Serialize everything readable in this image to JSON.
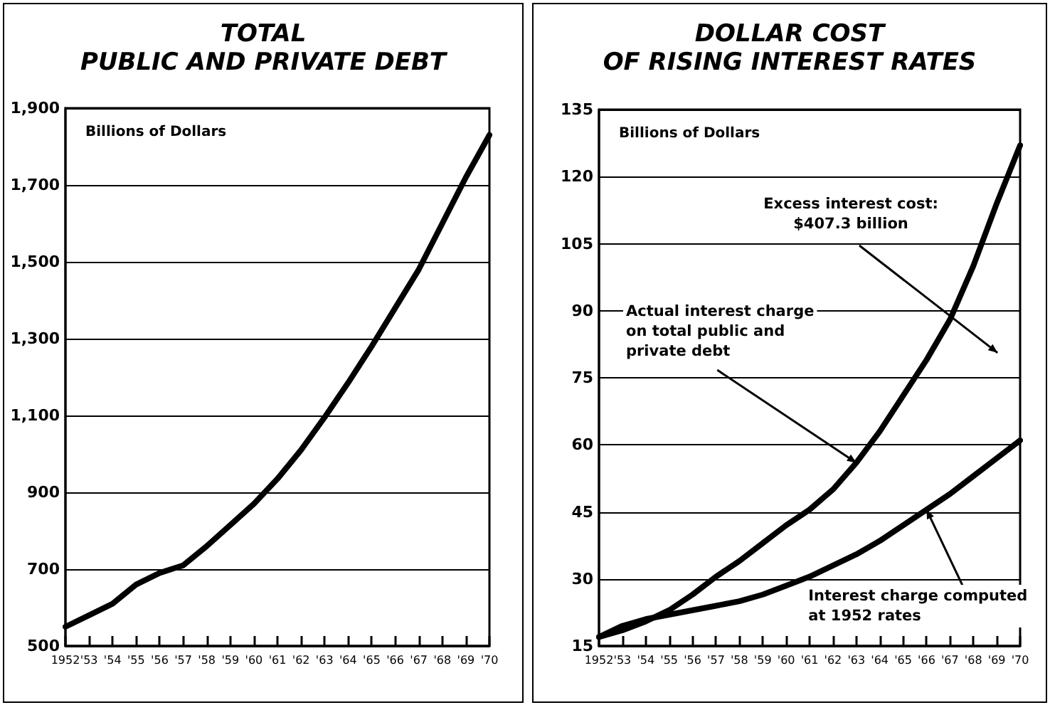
{
  "chart_data": [
    {
      "type": "line",
      "title": "TOTAL\nPUBLIC AND PRIVATE DEBT",
      "ylabel": "Billions of Dollars",
      "categories": [
        "1952",
        "'53",
        "'54",
        "'55",
        "'56",
        "'57",
        "'58",
        "'59",
        "'60",
        "'61",
        "'62",
        "'63",
        "'64",
        "'65",
        "'66",
        "'67",
        "'68",
        "'69",
        "'70"
      ],
      "series": [
        {
          "color": "#000000",
          "values": [
            550,
            580,
            610,
            660,
            690,
            710,
            760,
            815,
            870,
            935,
            1010,
            1095,
            1185,
            1280,
            1380,
            1480,
            1600,
            1720,
            1830
          ]
        }
      ],
      "ylim": [
        500,
        1900
      ],
      "yticks": [
        500,
        700,
        900,
        {
          "value": 1100,
          "label": "1,100"
        },
        {
          "value": 1300,
          "label": "1,300"
        },
        {
          "value": 1500,
          "label": "1,500"
        },
        {
          "value": 1700,
          "label": "1,700"
        },
        {
          "value": 1900,
          "label": "1,900"
        }
      ],
      "grid": "y",
      "marker": "none",
      "line_style": "solid"
    },
    {
      "type": "line",
      "title": "DOLLAR COST\nOF RISING INTEREST RATES",
      "ylabel": "Billions of Dollars",
      "categories": [
        "1952",
        "'53",
        "'54",
        "'55",
        "'56",
        "'57",
        "'58",
        "'59",
        "'60",
        "'61",
        "'62",
        "'63",
        "'64",
        "'65",
        "'66",
        "'67",
        "'68",
        "'69",
        "'70"
      ],
      "series": [
        {
          "color": "#000000",
          "values": [
            17,
            18.5,
            20.5,
            23,
            26.5,
            30.5,
            34,
            38,
            42,
            45.5,
            50,
            56,
            63,
            71,
            79,
            88,
            100,
            114,
            127
          ]
        },
        {
          "color": "#000000",
          "values": [
            17,
            19.5,
            21,
            22,
            23,
            24,
            25,
            26.5,
            28.5,
            30.5,
            33,
            35.5,
            38.5,
            42,
            45.5,
            49,
            53,
            57,
            61
          ]
        }
      ],
      "ylim": [
        15,
        135
      ],
      "yticks": [
        15,
        30,
        45,
        60,
        75,
        90,
        105,
        120,
        135
      ],
      "annotations": [
        "Excess interest cost:\n$407.3 billion",
        {
          "text": "Actual interest charge\non total public and\nprivate debt",
          "x": "'63",
          "y": 56
        },
        {
          "text": "Interest charge computed\nat 1952 rates",
          "x": "'66",
          "y": 45.5
        }
      ],
      "grid": "y",
      "marker": "none",
      "line_style": "solid"
    }
  ]
}
